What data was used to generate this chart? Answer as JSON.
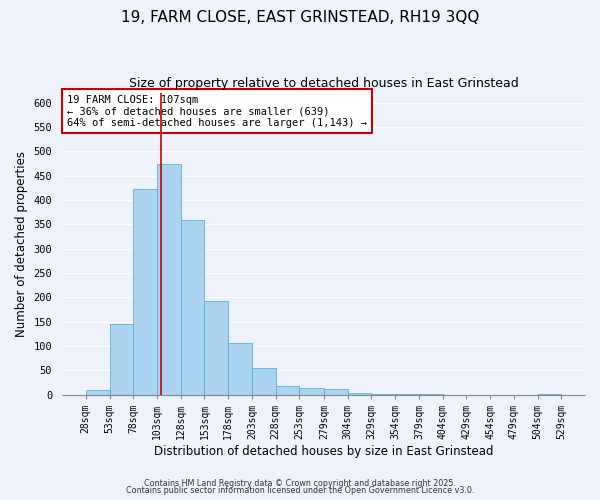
{
  "title_line1": "19, FARM CLOSE, EAST GRINSTEAD, RH19 3QQ",
  "title_line2": "Size of property relative to detached houses in East Grinstead",
  "xlabel": "Distribution of detached houses by size in East Grinstead",
  "ylabel": "Number of detached properties",
  "bin_edges": [
    28,
    53,
    78,
    103,
    128,
    153,
    178,
    203,
    228,
    253,
    279,
    304,
    329,
    354,
    379,
    404,
    429,
    454,
    479,
    504,
    529
  ],
  "bar_heights": [
    10,
    145,
    422,
    475,
    360,
    193,
    107,
    54,
    18,
    14,
    11,
    3,
    2,
    1,
    1,
    0,
    0,
    0,
    0,
    1
  ],
  "bar_color": "#aad4f0",
  "bar_edge_color": "#5bafd6",
  "bar_linewidth": 0.6,
  "vline_x": 107,
  "vline_color": "#cc0000",
  "vline_linewidth": 1.2,
  "annotation_text": "19 FARM CLOSE: 107sqm\n← 36% of detached houses are smaller (639)\n64% of semi-detached houses are larger (1,143) →",
  "annotation_box_color": "white",
  "annotation_box_edge": "#cc0000",
  "annotation_fontsize": 7.5,
  "ylim": [
    0,
    620
  ],
  "yticks": [
    0,
    50,
    100,
    150,
    200,
    250,
    300,
    350,
    400,
    450,
    500,
    550,
    600
  ],
  "background_color": "#eef2fa",
  "grid_color": "white",
  "footer_line1": "Contains HM Land Registry data © Crown copyright and database right 2025.",
  "footer_line2": "Contains public sector information licensed under the Open Government Licence v3.0.",
  "title_fontsize": 11,
  "subtitle_fontsize": 9,
  "tick_label_fontsize": 7,
  "axis_label_fontsize": 8.5,
  "footer_fontsize": 5.8
}
